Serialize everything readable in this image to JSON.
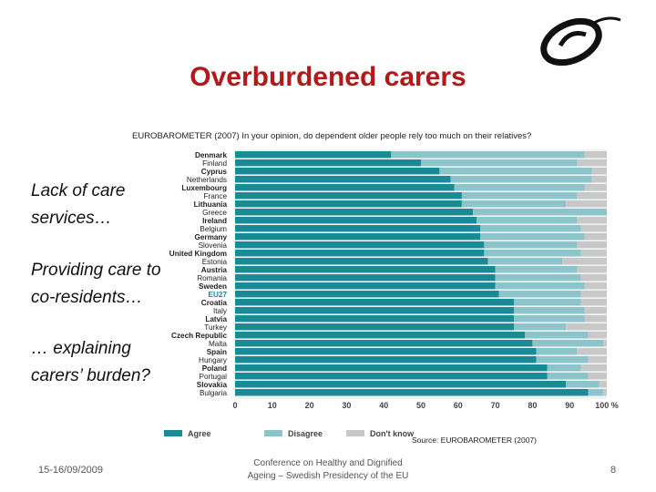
{
  "slide": {
    "title": "Overburdened carers",
    "notes": [
      "Lack of care services…",
      "Providing care to co-residents…",
      "… explaining carers’ burden?"
    ],
    "source": "Source: EUROBAROMETER (2007)",
    "footer_date": "15-16/09/2009",
    "footer_conference_line1": "Conference on Healthy and Dignified",
    "footer_conference_line2": "Ageing – Swedish Presidency of the EU",
    "page_number": "8"
  },
  "colors": {
    "agree": "#1a8a96",
    "disagree": "#8cc4cb",
    "dont_know": "#c8c8c8",
    "title": "#b01a1a"
  },
  "chart_data": {
    "type": "bar",
    "orientation": "horizontal",
    "stacked": true,
    "title": "EUROBAROMETER (2007) In your opinion, do dependent older people rely too much on their relatives?",
    "categories": [
      "Denmark",
      "Finland",
      "Cyprus",
      "Netherlands",
      "Luxembourg",
      "France",
      "Lithuania",
      "Greece",
      "Ireland",
      "Belgium",
      "Germany",
      "Slovenia",
      "United Kingdom",
      "Estonia",
      "Austria",
      "Romania",
      "Sweden",
      "EU27",
      "Croatia",
      "Italy",
      "Latvia",
      "Turkey",
      "Czech Republic",
      "Malta",
      "Spain",
      "Hungary",
      "Poland",
      "Portugal",
      "Slovakia",
      "Bulgaria"
    ],
    "highlight_category": "EU27",
    "series": [
      {
        "name": "Agree",
        "values": [
          42,
          50,
          55,
          58,
          59,
          61,
          61,
          64,
          65,
          66,
          66,
          67,
          67,
          68,
          70,
          70,
          70,
          71,
          75,
          75,
          75,
          75,
          78,
          80,
          81,
          81,
          84,
          84,
          89,
          95
        ]
      },
      {
        "name": "Disagree",
        "values": [
          52,
          42,
          41,
          38,
          35,
          31,
          28,
          36,
          27,
          27,
          28,
          25,
          26,
          20,
          22,
          23,
          24,
          22,
          18,
          19,
          19,
          14,
          17,
          19,
          11,
          14,
          9,
          11,
          9,
          4
        ]
      },
      {
        "name": "Don't know",
        "values": [
          6,
          8,
          4,
          4,
          6,
          8,
          11,
          0,
          8,
          7,
          6,
          8,
          7,
          12,
          8,
          7,
          6,
          7,
          7,
          6,
          6,
          11,
          5,
          1,
          8,
          5,
          7,
          5,
          2,
          1
        ]
      }
    ],
    "x_ticks": [
      "0",
      "10",
      "20",
      "30",
      "40",
      "50",
      "60",
      "70",
      "80",
      "90",
      "100 %"
    ],
    "xlim": [
      0,
      100
    ],
    "legend": [
      "Agree",
      "Disagree",
      "Don't know"
    ],
    "legend_position": "bottom"
  }
}
